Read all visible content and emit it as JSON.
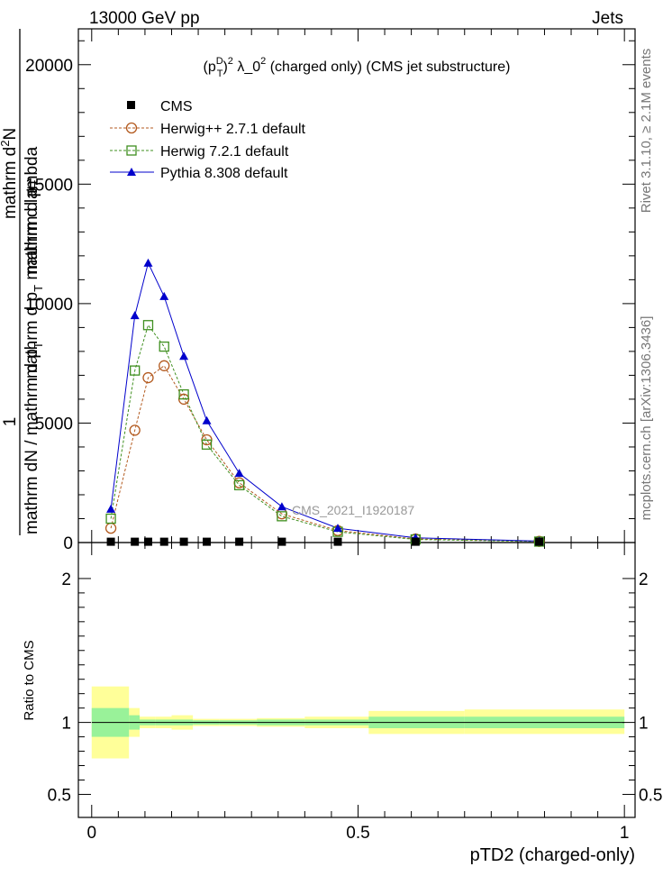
{
  "header": {
    "left": "13000 GeV pp",
    "right": "Jets"
  },
  "side_labels": {
    "rivet": "Rivet 3.1.10, ≥ 2.1M events",
    "mcplots": "mcplots.cern.ch [arXiv:1306.3436]"
  },
  "colors": {
    "cms": "#000000",
    "herwigpp": "#b35a1f",
    "herwig7": "#3f8f1f",
    "pythia": "#0000cc",
    "band_inner": "#99f299",
    "band_outer": "#ffff99"
  },
  "chart_data": [
    {
      "type": "line",
      "title": "(p_T^D)^2 λ_0^2 (charged only) (CMS jet substructure)",
      "title_parts": {
        "p": "(p",
        "sup_d": "D",
        "sub_t": "T",
        "close": ")",
        "sup_2a": "2",
        "lambda": " λ_0",
        "sup_2b": "2",
        "rest": " (charged only) (CMS jet substructure)"
      },
      "ylabel": "1 / mathrm dN / mathrm d p_T mathrm d p_T mathrm d lambda mathrm d²N",
      "ylabel_parts": {
        "one": "1",
        "denominator": "mathrm dN / mathrm d p",
        "denominator_sub": "T",
        "numerator1": "mathrm d",
        "numerator1_sup": "2",
        "numerator1_end": "N",
        "numerator2": "mathrm d p",
        "numerator2_sub": "T",
        "numerator3": "mathrm d p",
        "numerator3_sub": "T",
        "numerator4": " mathrm d lambda"
      },
      "annotation": "CMS_2021_I1920187",
      "xlim": [
        -0.025,
        1.02
      ],
      "ylim": [
        0,
        21500
      ],
      "yticks": [
        0,
        5000,
        10000,
        15000,
        20000
      ],
      "ytick_labels": [
        "0",
        "5000",
        "10000",
        "15000",
        "20000"
      ],
      "legend_position": "top-left",
      "legend": [
        "CMS",
        "Herwig++ 2.7.1 default",
        "Herwig 7.2.1 default",
        "Pythia 8.308 default"
      ],
      "series": [
        {
          "name": "CMS",
          "x": [
            0.036,
            0.081,
            0.106,
            0.136,
            0.173,
            0.216,
            0.277,
            0.357,
            0.462,
            0.608,
            0.84
          ],
          "y": [
            15,
            15,
            15,
            15,
            15,
            15,
            15,
            15,
            15,
            15,
            15
          ]
        },
        {
          "name": "Herwig++ 2.7.1 default",
          "x": [
            0.036,
            0.081,
            0.106,
            0.136,
            0.173,
            0.216,
            0.277,
            0.357,
            0.462,
            0.608,
            0.84
          ],
          "y": [
            600,
            4700,
            6900,
            7400,
            6000,
            4300,
            2500,
            1200,
            500,
            150,
            50
          ]
        },
        {
          "name": "Herwig 7.2.1 default",
          "x": [
            0.036,
            0.081,
            0.106,
            0.136,
            0.173,
            0.216,
            0.277,
            0.357,
            0.462,
            0.608,
            0.84
          ],
          "y": [
            1000,
            7200,
            9100,
            8200,
            6200,
            4100,
            2400,
            1100,
            450,
            130,
            40
          ]
        },
        {
          "name": "Pythia 8.308 default",
          "x": [
            0.036,
            0.081,
            0.106,
            0.136,
            0.173,
            0.216,
            0.277,
            0.357,
            0.462,
            0.608,
            0.84
          ],
          "y": [
            1400,
            9500,
            11700,
            10300,
            7800,
            5100,
            2900,
            1500,
            600,
            200,
            60
          ]
        }
      ]
    },
    {
      "type": "area",
      "xlabel": "pTD2 (charged-only)",
      "ylabel": "Ratio to CMS",
      "xlim": [
        -0.025,
        1.02
      ],
      "ylim": [
        0.34,
        2.25
      ],
      "xticks": [
        0,
        0.5,
        1
      ],
      "xtick_labels": [
        "0",
        "0.5",
        "1"
      ],
      "yticks": [
        0.5,
        1,
        2
      ],
      "ytick_labels": [
        "0.5",
        "1",
        "2"
      ],
      "bins": [
        {
          "x0": 0.0,
          "x1": 0.07,
          "inner": [
            0.9,
            1.1
          ],
          "outer": [
            0.75,
            1.25
          ]
        },
        {
          "x0": 0.07,
          "x1": 0.09,
          "inner": [
            0.95,
            1.05
          ],
          "outer": [
            0.9,
            1.1
          ]
        },
        {
          "x0": 0.09,
          "x1": 0.12,
          "inner": [
            0.98,
            1.02
          ],
          "outer": [
            0.96,
            1.04
          ]
        },
        {
          "x0": 0.12,
          "x1": 0.15,
          "inner": [
            0.98,
            1.02
          ],
          "outer": [
            0.96,
            1.04
          ]
        },
        {
          "x0": 0.15,
          "x1": 0.19,
          "inner": [
            0.98,
            1.02
          ],
          "outer": [
            0.95,
            1.05
          ]
        },
        {
          "x0": 0.19,
          "x1": 0.24,
          "inner": [
            0.985,
            1.015
          ],
          "outer": [
            0.975,
            1.025
          ]
        },
        {
          "x0": 0.24,
          "x1": 0.31,
          "inner": [
            0.985,
            1.015
          ],
          "outer": [
            0.975,
            1.025
          ]
        },
        {
          "x0": 0.31,
          "x1": 0.4,
          "inner": [
            0.98,
            1.02
          ],
          "outer": [
            0.97,
            1.03
          ]
        },
        {
          "x0": 0.4,
          "x1": 0.52,
          "inner": [
            0.98,
            1.02
          ],
          "outer": [
            0.96,
            1.04
          ]
        },
        {
          "x0": 0.52,
          "x1": 0.7,
          "inner": [
            0.96,
            1.04
          ],
          "outer": [
            0.92,
            1.08
          ]
        },
        {
          "x0": 0.7,
          "x1": 1.0,
          "inner": [
            0.96,
            1.04
          ],
          "outer": [
            0.92,
            1.09
          ]
        }
      ],
      "reference": 1
    }
  ]
}
